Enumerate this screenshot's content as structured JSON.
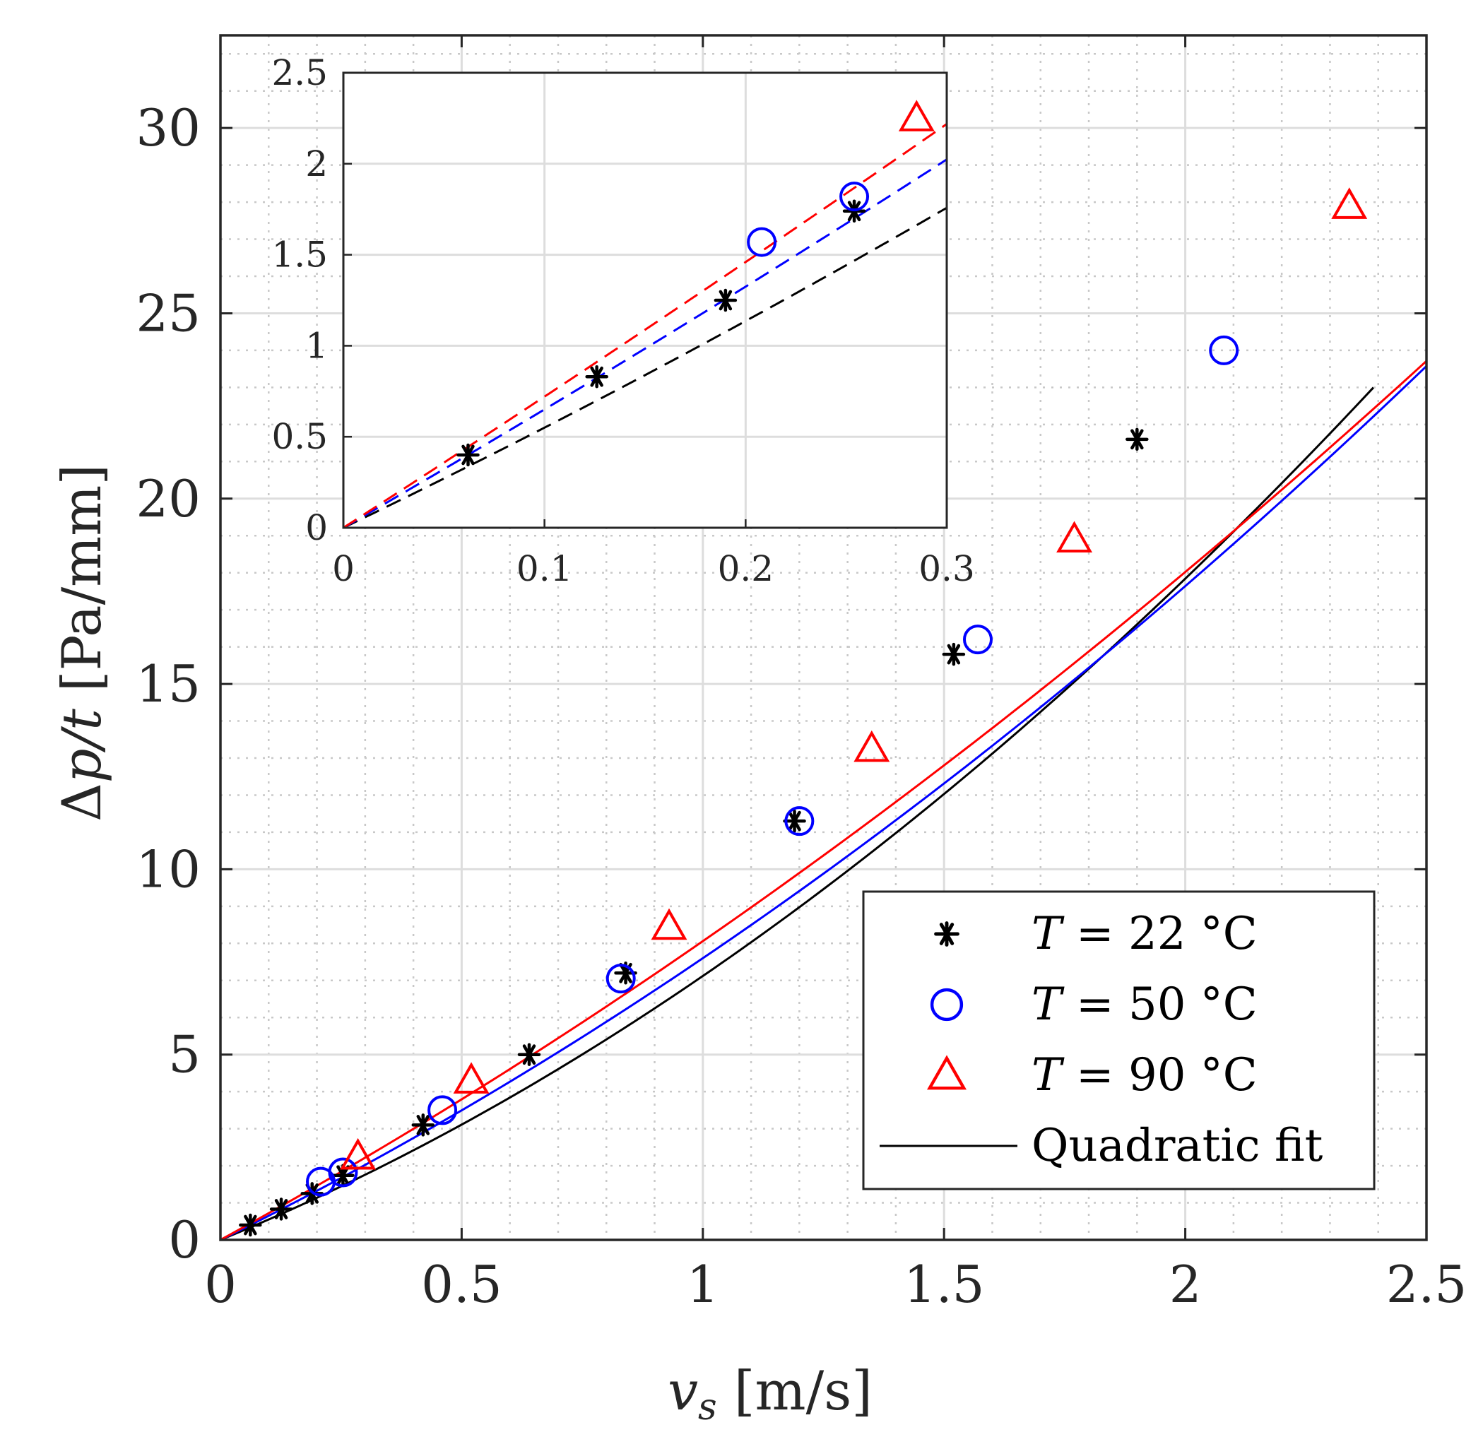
{
  "chart_data": [
    {
      "type": "scatter",
      "xlabel_parts": [
        "v",
        "s",
        " [m/s]"
      ],
      "ylabel_parts": [
        "Δ",
        "p/t",
        " [Pa/mm]"
      ],
      "xlim": [
        0,
        2.5
      ],
      "ylim": [
        0,
        32.5
      ],
      "xticks": [
        0,
        0.5,
        1,
        1.5,
        2,
        2.5
      ],
      "xtick_labels": [
        "0",
        "0.5",
        "1",
        "1.5",
        "2",
        "2.5"
      ],
      "yticks": [
        0,
        5,
        10,
        15,
        20,
        25,
        30
      ],
      "ytick_labels": [
        "0",
        "5",
        "10",
        "15",
        "20",
        "25",
        "30"
      ],
      "grid": "major and minor",
      "legend_position": "bottom-right",
      "series": [
        {
          "name": "T = 22 °C",
          "legend_var": "T",
          "legend_rest": " = 22 °C",
          "marker": "asterisk",
          "color": "#000000",
          "x": [
            0.062,
            0.126,
            0.19,
            0.254,
            0.42,
            0.64,
            0.84,
            1.19,
            1.52,
            1.9
          ],
          "y": [
            0.4,
            0.83,
            1.25,
            1.74,
            3.1,
            5.0,
            7.2,
            11.3,
            15.8,
            21.6
          ],
          "fit": [
            1.8,
            5.32
          ]
        },
        {
          "name": "T = 50 °C",
          "legend_var": "T",
          "legend_rest": " = 50 °C",
          "marker": "circle",
          "color": "#0000ff",
          "x": [
            0.208,
            0.254,
            0.46,
            0.83,
            1.2,
            1.57,
            2.08
          ],
          "y": [
            1.57,
            1.82,
            3.5,
            7.05,
            11.3,
            16.2,
            24.0
          ],
          "fit": [
            1.22,
            6.38
          ]
        },
        {
          "name": "T = 90 °C",
          "legend_var": "T",
          "legend_rest": " = 90 °C",
          "marker": "triangle",
          "color": "#ff0000",
          "x": [
            0.285,
            0.52,
            0.93,
            1.35,
            1.77,
            2.34
          ],
          "y": [
            2.25,
            4.3,
            8.45,
            13.25,
            18.9,
            27.9
          ],
          "fit": [
            0.95,
            7.11
          ]
        }
      ],
      "fit_legend": "Quadratic fit",
      "fit_xmax": [
        2.39,
        2.5,
        2.5
      ]
    },
    {
      "type": "scatter",
      "role": "inset",
      "xlim": [
        0,
        0.3
      ],
      "ylim": [
        0,
        2.5
      ],
      "xticks": [
        0,
        0.1,
        0.2,
        0.3
      ],
      "xtick_labels": [
        "0",
        "0.1",
        "0.2",
        "0.3"
      ],
      "yticks": [
        0,
        0.5,
        1,
        1.5,
        2,
        2.5
      ],
      "ytick_labels": [
        "0",
        "0.5",
        "1",
        "1.5",
        "2",
        "2.5"
      ],
      "grid": "major",
      "fit_style": "dashed"
    }
  ]
}
